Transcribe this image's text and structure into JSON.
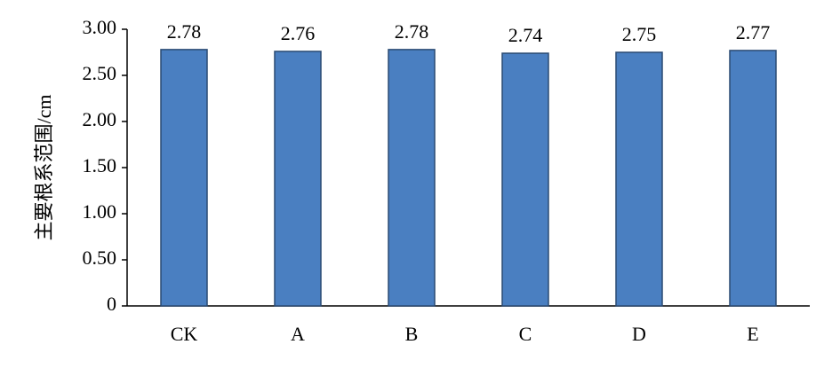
{
  "chart_data": {
    "type": "bar",
    "y_label": "主要根系范围/cm",
    "categories": [
      "CK",
      "A",
      "B",
      "C",
      "D",
      "E"
    ],
    "values": [
      2.78,
      2.76,
      2.78,
      2.74,
      2.75,
      2.77
    ],
    "color": "#4a7fc1",
    "ylim": [
      0,
      3
    ],
    "yticks": [
      0,
      {
        "value": 0.5,
        "label": "0.50"
      },
      {
        "value": 1,
        "label": "1.00"
      },
      {
        "value": 1.5,
        "label": "1.50"
      },
      {
        "value": 2,
        "label": "2.00"
      },
      {
        "value": 2.5,
        "label": "2.50"
      },
      {
        "value": 3,
        "label": "3.00"
      }
    ],
    "grid": false
  }
}
